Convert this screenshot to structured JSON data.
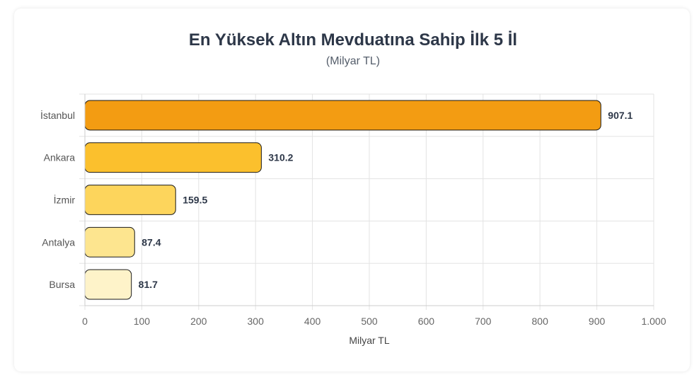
{
  "chart_data": {
    "type": "bar",
    "orientation": "horizontal",
    "title": "En Yüksek Altın Mevduatına Sahip İlk 5 İl",
    "subtitle": "(Milyar TL)",
    "xlabel": "Milyar TL",
    "ylabel": "",
    "categories": [
      "İstanbul",
      "Ankara",
      "İzmir",
      "Antalya",
      "Bursa"
    ],
    "values": [
      907.1,
      310.2,
      159.5,
      87.4,
      81.7
    ],
    "data_labels": [
      "907.1",
      "310.2",
      "159.5",
      "87.4",
      "81.7"
    ],
    "bar_colors": [
      "#f39c12",
      "#fbc02d",
      "#fdd55c",
      "#fde58f",
      "#fef3c9"
    ],
    "xlim": [
      0,
      1000
    ],
    "x_ticks": [
      0,
      100,
      200,
      300,
      400,
      500,
      600,
      700,
      800,
      900,
      1000
    ],
    "x_tick_labels": [
      "0",
      "100",
      "200",
      "300",
      "400",
      "500",
      "600",
      "700",
      "800",
      "900",
      "1.000"
    ],
    "grid": true,
    "legend": "none"
  }
}
